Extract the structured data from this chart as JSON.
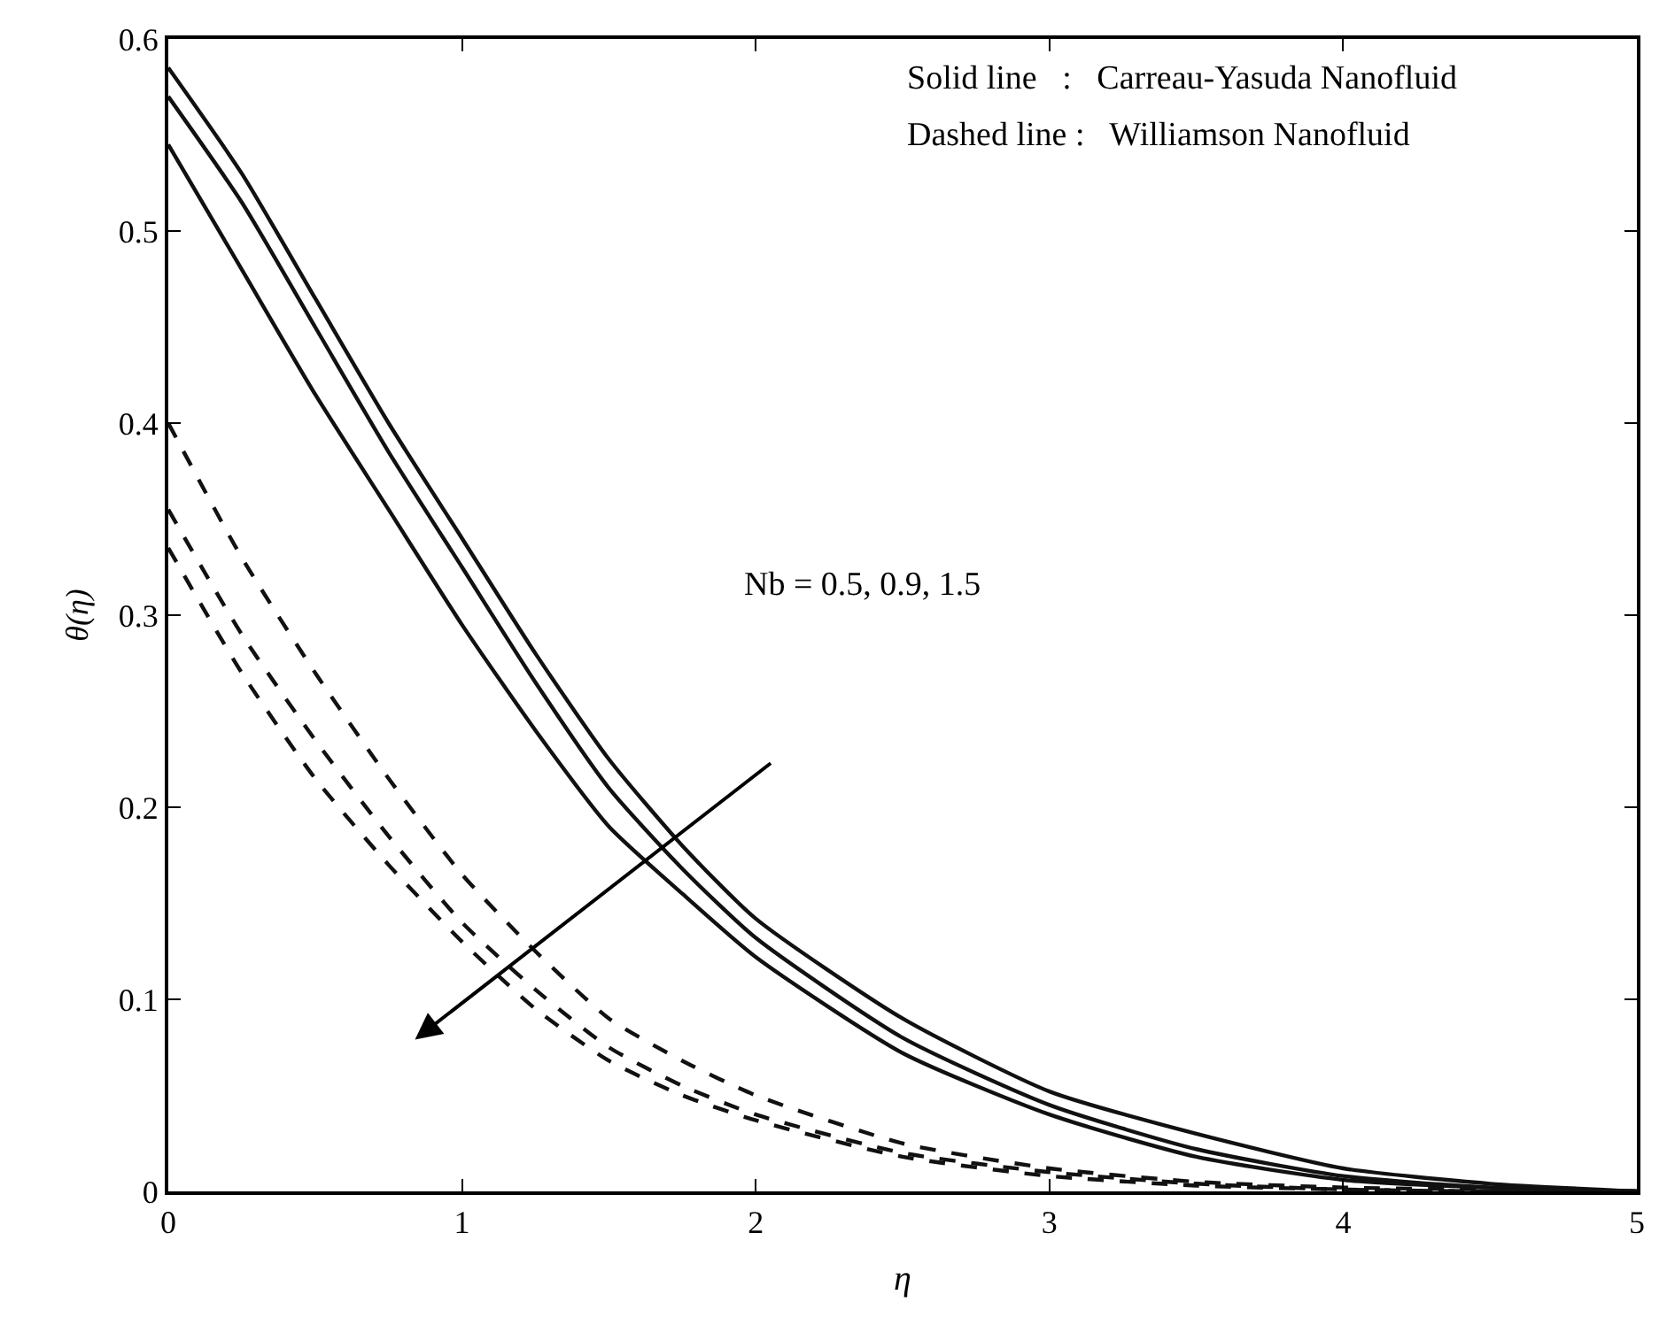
{
  "chart_data": {
    "type": "line",
    "xlabel": "η",
    "ylabel": "θ(η)",
    "xlim": [
      0,
      5
    ],
    "ylim": [
      0,
      0.6
    ],
    "xticks": [
      0,
      1,
      2,
      3,
      4,
      5
    ],
    "yticks": [
      0,
      0.1,
      0.2,
      0.3,
      0.4,
      0.5,
      0.6
    ],
    "marker": "none",
    "x": [
      0,
      0.25,
      0.5,
      0.75,
      1,
      1.25,
      1.5,
      1.75,
      2,
      2.5,
      3,
      3.5,
      4,
      4.5,
      5
    ],
    "series": [
      {
        "color": "#111111",
        "line_style": "solid",
        "values": [
          0.585,
          0.53,
          0.465,
          0.4,
          0.34,
          0.28,
          0.225,
          0.18,
          0.142,
          0.09,
          0.052,
          0.03,
          0.012,
          0.004,
          0
        ]
      },
      {
        "color": "#111111",
        "line_style": "solid",
        "values": [
          0.57,
          0.515,
          0.45,
          0.385,
          0.325,
          0.265,
          0.21,
          0.168,
          0.132,
          0.08,
          0.045,
          0.022,
          0.008,
          0.002,
          0
        ]
      },
      {
        "color": "#111111",
        "line_style": "solid",
        "values": [
          0.545,
          0.48,
          0.415,
          0.355,
          0.295,
          0.24,
          0.19,
          0.155,
          0.122,
          0.072,
          0.04,
          0.018,
          0.006,
          0.002,
          0
        ]
      },
      {
        "color": "#111111",
        "line_style": "dashed",
        "values": [
          0.4,
          0.33,
          0.27,
          0.215,
          0.165,
          0.125,
          0.09,
          0.068,
          0.05,
          0.025,
          0.012,
          0.005,
          0.002,
          0.001,
          0
        ]
      },
      {
        "color": "#111111",
        "line_style": "dashed",
        "values": [
          0.355,
          0.29,
          0.235,
          0.185,
          0.14,
          0.105,
          0.075,
          0.055,
          0.04,
          0.02,
          0.01,
          0.004,
          0.001,
          0,
          0
        ]
      },
      {
        "color": "#111111",
        "line_style": "dashed",
        "values": [
          0.335,
          0.27,
          0.215,
          0.17,
          0.13,
          0.095,
          0.068,
          0.05,
          0.037,
          0.018,
          0.008,
          0.003,
          0.001,
          0,
          0
        ]
      }
    ],
    "annotations": [
      "Solid line   :   Carreau-Yasuda Nanofluid",
      "Dashed line :   Williamson Nanofluid",
      "Nb = 0.5, 0.9, 1.5"
    ]
  }
}
